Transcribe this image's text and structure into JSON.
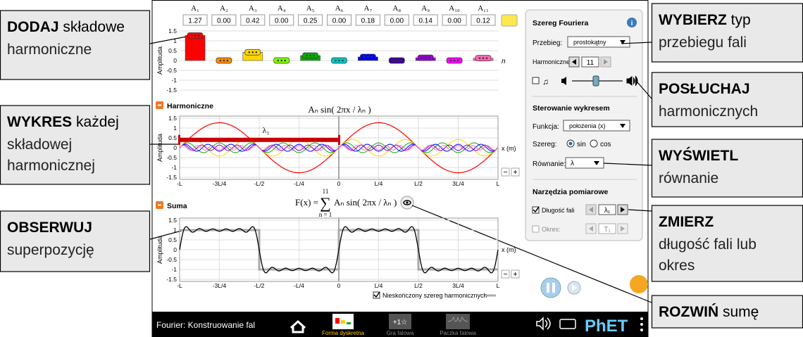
{
  "amplitudes": {
    "names": [
      "A₁",
      "A₂",
      "A₃",
      "A₄",
      "A₅",
      "A₆",
      "A₇",
      "A₈",
      "A₉",
      "A₁₀",
      "A₁₁"
    ],
    "values": [
      {
        "value": 1.27,
        "label": "1.27"
      },
      {
        "value": 0,
        "label": "0.00"
      },
      {
        "value": 0.42,
        "label": "0.42"
      },
      {
        "value": 0,
        "label": "0.00"
      },
      {
        "value": 0.25,
        "label": "0.25"
      },
      {
        "value": 0,
        "label": "0.00"
      },
      {
        "value": 0.18,
        "label": "0.18"
      },
      {
        "value": 0,
        "label": "0.00"
      },
      {
        "value": 0.14,
        "label": "0.14"
      },
      {
        "value": 0,
        "label": "0.00"
      },
      {
        "value": 0.12,
        "label": "0.12"
      }
    ],
    "colors": [
      "#ff0000",
      "#ff8c00",
      "#ffd700",
      "#7fff00",
      "#00b000",
      "#00c8c8",
      "#0000ff",
      "#3c00a0",
      "#9400d3",
      "#ff00ff",
      "#ff69b4"
    ],
    "x_label": "n",
    "y_label": "Amplituda"
  },
  "y_ticks": [
    1.5,
    1,
    0.5,
    0,
    -0.5,
    -1,
    -1.5
  ],
  "x_ticks": [
    {
      "value": -1,
      "label": "-L"
    },
    {
      "value": -0.75,
      "label": "-3L/4"
    },
    {
      "value": -0.5,
      "label": "-L/2"
    },
    {
      "value": -0.25,
      "label": "-L/4"
    },
    {
      "value": 0,
      "label": "0"
    },
    {
      "value": 0.25,
      "label": "L/4"
    },
    {
      "value": 0.5,
      "label": "L/2"
    },
    {
      "value": 0.75,
      "label": "3L/4"
    },
    {
      "value": 1,
      "label": "L"
    }
  ],
  "harmonics_graph": {
    "title": "Harmoniczne",
    "equation": "Aₙ sin( 2πx / λₙ )",
    "wavelength_marker": "λ₁",
    "x_label": "x (m)",
    "y_label": "Amplituda"
  },
  "sum_graph": {
    "title": "Suma",
    "equation_left": "F(x) =",
    "sum_symbol": "∑",
    "upper": "11",
    "lower": "n = 1",
    "equation_right": "Aₙ sin( 2πx / λₙ )",
    "x_label": "x (m)",
    "y_label": "Amplituda",
    "infinite_label": "Nieskończony szereg harmonicznych"
  },
  "panel": {
    "title": "Szereg Fouriera",
    "waveform_label": "Przebieg:",
    "waveform": "prostokątny",
    "harmonics_label": "Harmoniczne:",
    "harmonics": "11",
    "graph_title": "Sterowanie wykresem",
    "function_label": "Funkcja:",
    "function": "położenia (x)",
    "series_label": "Szereg:",
    "sin": "sin",
    "cos": "cos",
    "equation_label": "Równanie:",
    "equation": "λ",
    "tools_title": "Narzędzia pomiarowe",
    "wavelength_label": "Długość fali",
    "wavelength": "λ₁",
    "period_label": "Okres:",
    "period": "T₁"
  },
  "nav": {
    "app_title": "Fourier: Konstruowanie fal",
    "screens": [
      "Forma dyskretna",
      "Gra falowa",
      "Paczka falowa"
    ],
    "logo": "PhET"
  },
  "callouts": [
    {
      "bold": "DODAJ",
      "after": "składowe",
      "lines": [
        "harmoniczne"
      ]
    },
    {
      "bold": "WYKRES",
      "after": "każdej",
      "lines": [
        "składowej",
        "harmonicznej"
      ]
    },
    {
      "bold": "OBSERWUJ",
      "lines": [
        "superpozycję"
      ]
    },
    {
      "bold": "WYBIERZ",
      "after": "typ",
      "lines": [
        "przebiegu fali"
      ]
    },
    {
      "bold": "POSŁUCHAJ",
      "lines": [
        "harmonicznych"
      ]
    },
    {
      "bold": "WYŚWIETL",
      "lines": [
        "równanie"
      ]
    },
    {
      "bold": "ZMIERZ",
      "lines": [
        "długość fali lub",
        "okres"
      ]
    },
    {
      "bold": "ROZWIŃ",
      "after": "sumę"
    }
  ]
}
